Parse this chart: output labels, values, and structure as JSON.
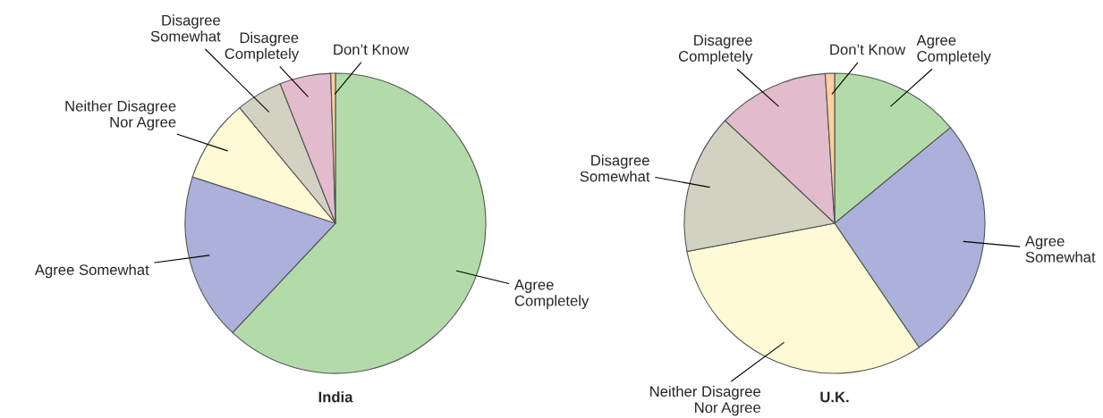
{
  "chart_data": [
    {
      "type": "pie",
      "title": "India",
      "categories": [
        "Agree\nCompletely",
        "Agree Somewhat",
        "Neither Disagree\nNor Agree",
        "Disagree\nSomewhat",
        "Disagree\nCompletely",
        "Don’t Know"
      ],
      "values": [
        62,
        18,
        9,
        5,
        5.5,
        0.5
      ],
      "colors": [
        "#b3dbaa",
        "#abb1da",
        "#fefad6",
        "#d3d2c2",
        "#e2bccc",
        "#fcd0a0"
      ]
    },
    {
      "type": "pie",
      "title": "U.K.",
      "categories": [
        "Agree\nCompletely",
        "Agree\nSomewhat",
        "Neither Disagree\nNor Agree",
        "Disagree\nSomewhat",
        "Disagree\nCompletely",
        "Don’t Know"
      ],
      "values": [
        14,
        26.5,
        31.5,
        15,
        12,
        1
      ],
      "colors": [
        "#b3dbaa",
        "#abb1da",
        "#fefad6",
        "#d3d2c2",
        "#e2bccc",
        "#fcd0a0"
      ]
    }
  ]
}
